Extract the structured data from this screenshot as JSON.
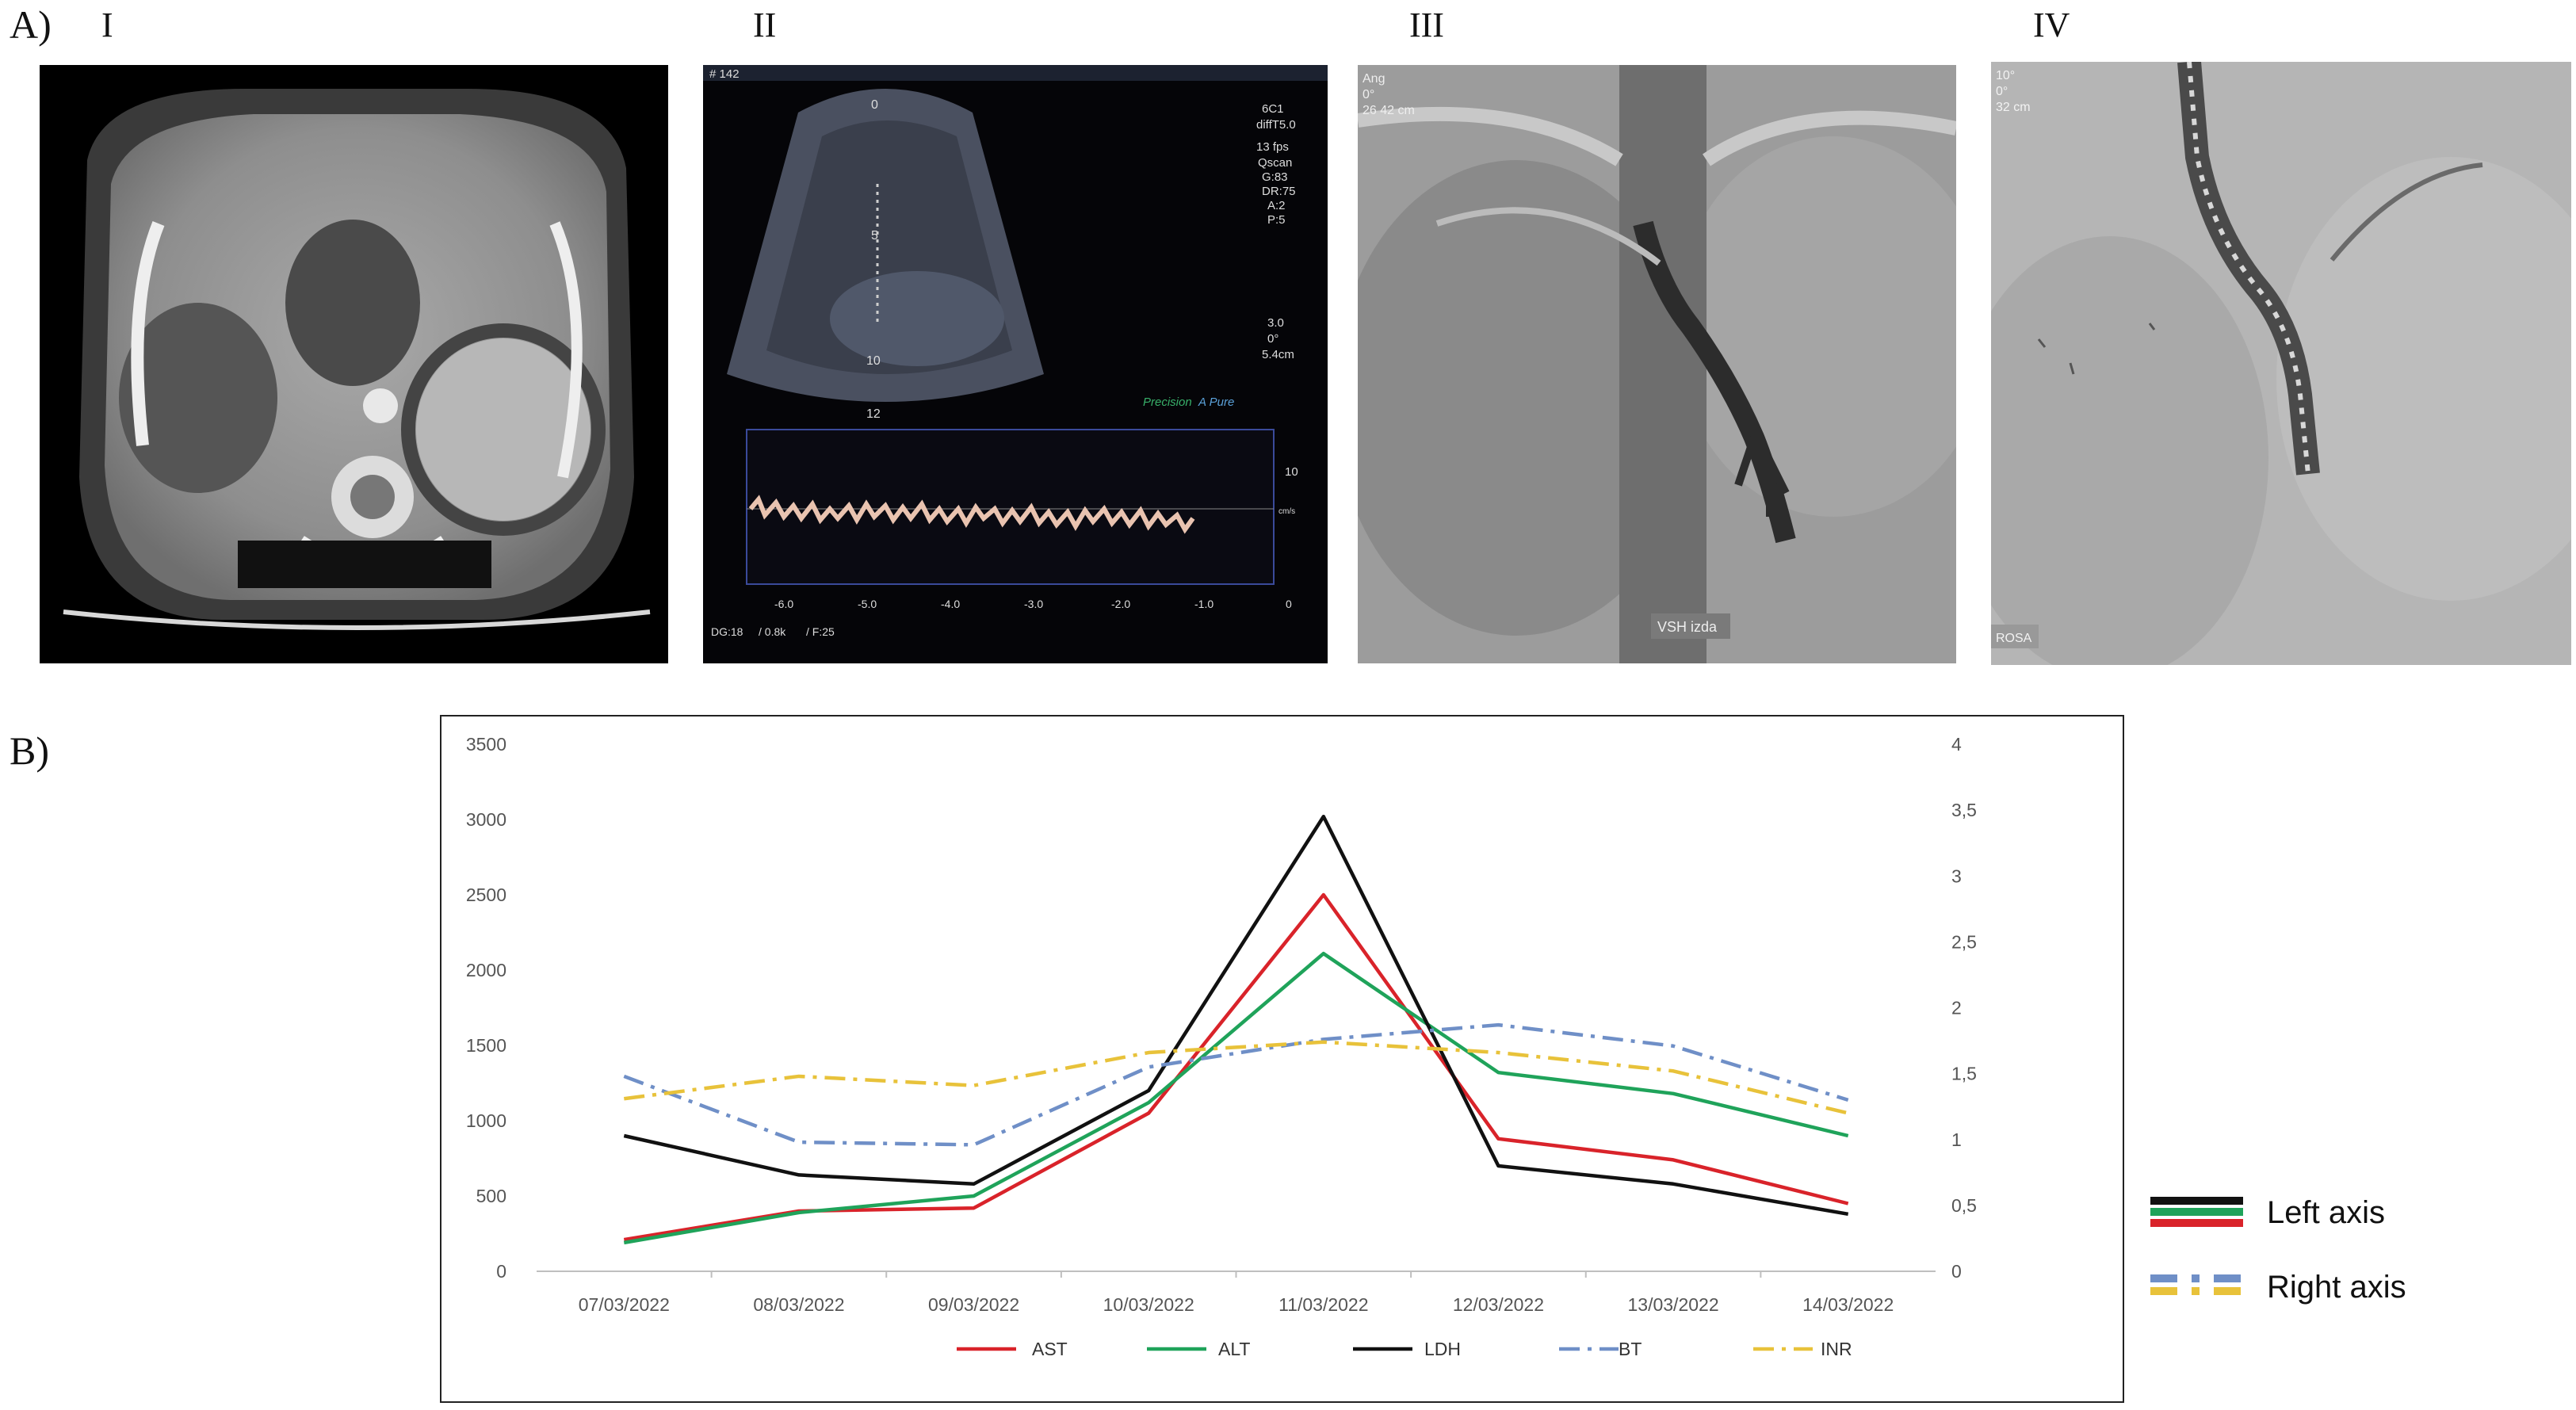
{
  "labels": {
    "panel_a": "A)",
    "panel_b": "B)",
    "roman": [
      "I",
      "II",
      "III",
      "IV"
    ]
  },
  "images": {
    "ultrasound": {
      "frame": "# 142",
      "depth_marks": [
        "0",
        "5",
        "10",
        "12"
      ],
      "params": [
        "6C1",
        "diffT5.0",
        "13 fps",
        "Qscan",
        "G:83",
        "DR:75",
        "A:2",
        "P:5"
      ],
      "focus": [
        "3.0",
        "0°",
        "5.4cm"
      ],
      "brand": "Precision",
      "mode": "A Pure",
      "doppler_scale_top": "10",
      "doppler_unit": "cm/s",
      "time_ticks": [
        "-6.0",
        "-5.0",
        "-4.0",
        "-3.0",
        "-2.0",
        "-1.0",
        "0"
      ],
      "footer": [
        "DG:18",
        "/ 0.8k",
        "/ F:25"
      ]
    },
    "venogram": {
      "corner": [
        "Ang",
        "0°",
        "26 42 cm"
      ],
      "caption": "VSH izda"
    },
    "stent": {
      "corner": [
        "10°",
        "0°",
        "32 cm"
      ],
      "caption": "ROSA"
    }
  },
  "axis_key": {
    "left": "Left axis",
    "right": "Right axis"
  },
  "chart_data": {
    "type": "line",
    "categories": [
      "07/03/2022",
      "08/03/2022",
      "09/03/2022",
      "10/03/2022",
      "11/03/2022",
      "12/03/2022",
      "13/03/2022",
      "14/03/2022"
    ],
    "left_axis": {
      "ylim": [
        0,
        3500
      ],
      "ticks": [
        "0",
        "500",
        "1000",
        "1500",
        "2000",
        "2500",
        "3000",
        "3500"
      ]
    },
    "right_axis": {
      "ylim": [
        0,
        4
      ],
      "ticks": [
        "0",
        "0,5",
        "1",
        "1,5",
        "2",
        "2,5",
        "3",
        "3,5",
        "4"
      ]
    },
    "grid": false,
    "legend_position": "bottom",
    "series": [
      {
        "name": "AST",
        "axis": "left",
        "color": "#d9232a",
        "dash": "solid",
        "values": [
          210,
          400,
          420,
          1050,
          2500,
          880,
          740,
          450
        ]
      },
      {
        "name": "ALT",
        "axis": "left",
        "color": "#1fa35a",
        "dash": "solid",
        "values": [
          190,
          390,
          500,
          1120,
          2110,
          1320,
          1180,
          900
        ]
      },
      {
        "name": "LDH",
        "axis": "left",
        "color": "#111111",
        "dash": "solid",
        "values": [
          900,
          640,
          580,
          1200,
          3020,
          700,
          580,
          380
        ]
      },
      {
        "name": "BT",
        "axis": "right",
        "color": "#6f8fc7",
        "dash": "dashdot",
        "values": [
          1.48,
          0.98,
          0.96,
          1.55,
          1.76,
          1.87,
          1.71,
          1.3
        ]
      },
      {
        "name": "INR",
        "axis": "right",
        "color": "#e8c23a",
        "dash": "dashdot",
        "values": [
          1.31,
          1.48,
          1.41,
          1.66,
          1.74,
          1.66,
          1.52,
          1.2
        ]
      }
    ]
  }
}
